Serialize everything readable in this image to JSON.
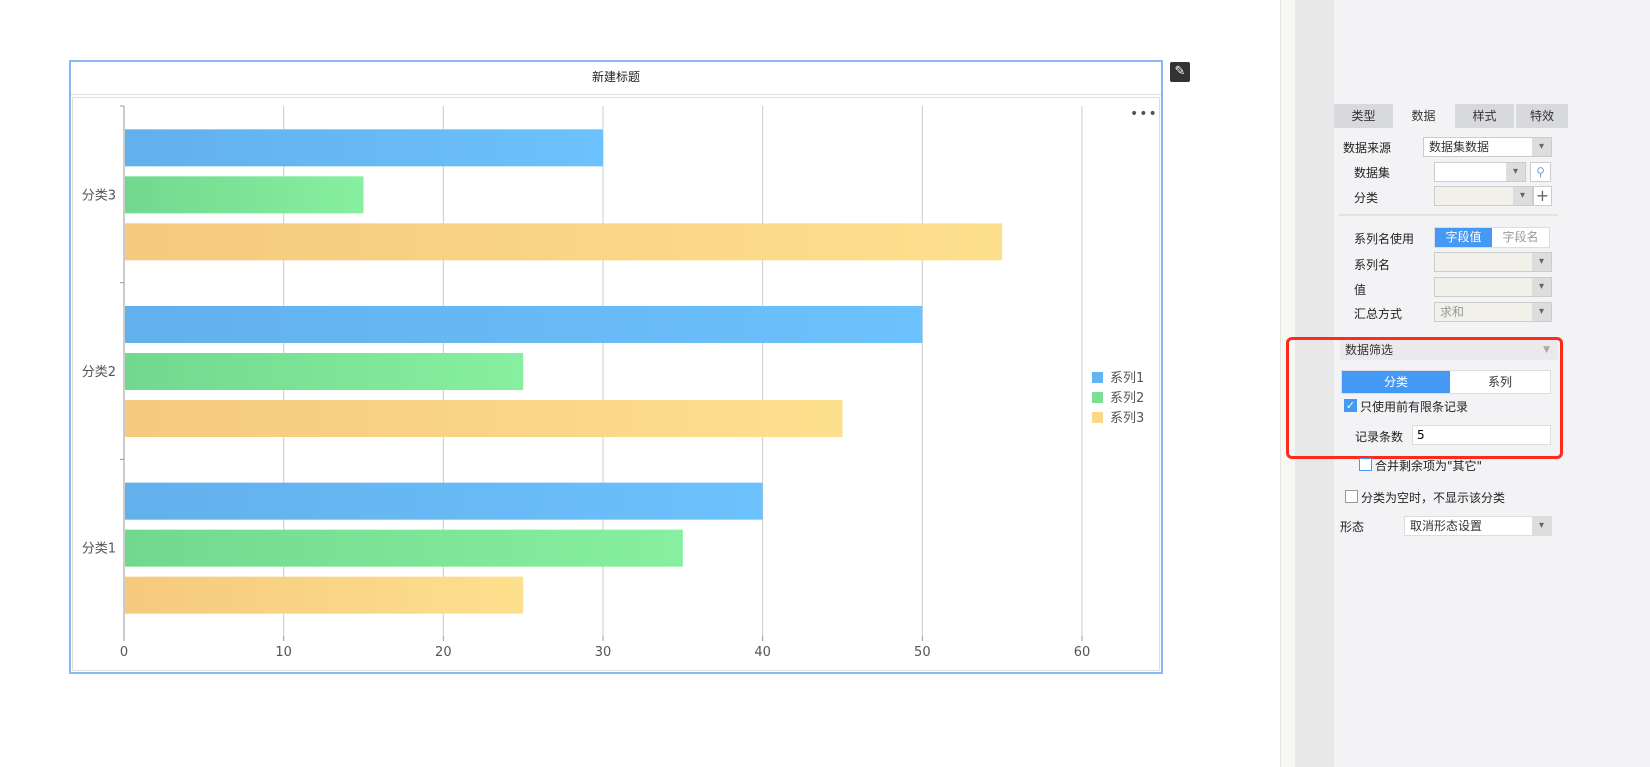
{
  "chart_title": "新建标题",
  "chart_data": {
    "type": "bar",
    "orientation": "horizontal",
    "categories": [
      "分类1",
      "分类2",
      "分类3"
    ],
    "series": [
      {
        "name": "系列1",
        "values": [
          40,
          50,
          30
        ],
        "color": "#62b4f2"
      },
      {
        "name": "系列2",
        "values": [
          35,
          25,
          15
        ],
        "color": "#7ddf96"
      },
      {
        "name": "系列3",
        "values": [
          25,
          45,
          55
        ],
        "color": "#fbd78a"
      }
    ],
    "xlim": [
      0,
      60
    ],
    "xticks": [
      "0",
      "10",
      "20",
      "30",
      "40",
      "50",
      "60"
    ],
    "grid": true,
    "legend": "right"
  },
  "panel": {
    "tabs": [
      "类型",
      "数据",
      "样式",
      "特效"
    ],
    "active_tab": "数据",
    "data_source_label": "数据来源",
    "data_source_value": "数据集数据",
    "dataset_label": "数据集",
    "dataset_value": "",
    "category_label": "分类",
    "category_value": "",
    "series_name_use_label": "系列名使用",
    "series_name_use_options": [
      "字段值",
      "字段名"
    ],
    "series_name_label": "系列名",
    "value_label": "值",
    "summary_label": "汇总方式",
    "summary_value": "求和",
    "filter_title": "数据筛选",
    "filter_tabs": [
      "分类",
      "系列"
    ],
    "limit_checkbox": "只使用前有限条记录",
    "limit_checked": true,
    "record_count_label": "记录条数",
    "record_count_value": "5",
    "merge_checkbox": "合并剩余项为\"其它\"",
    "merge_checked": false,
    "hide_empty_checkbox": "分类为空时，不显示该分类",
    "hide_empty_checked": false,
    "form_label": "形态",
    "form_value": "取消形态设置"
  },
  "colors": {
    "accent": "#4499f5",
    "highlight": "#ff2a1a"
  }
}
